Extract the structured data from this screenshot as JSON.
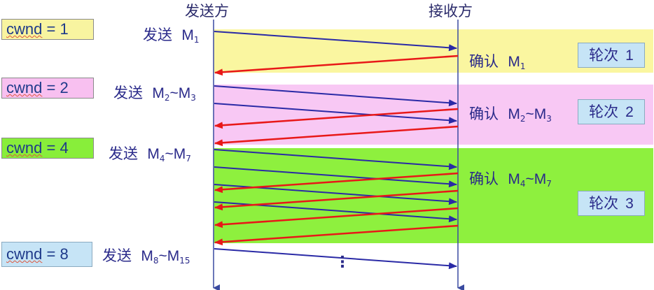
{
  "columns": {
    "sender": "发送方",
    "receiver": "接收方"
  },
  "colors": {
    "round1_band": "#faf6a0",
    "round2_band": "#f8c8f4",
    "round3_band": "#8ef03e",
    "send_arrow": "#2a2aa6",
    "ack_arrow": "#e81818",
    "cwnd1_bg": "#f8f4a0",
    "cwnd2_bg": "#f8c0f0",
    "cwnd4_bg": "#88ee3a",
    "cwnd8_bg": "#c6e4f6"
  },
  "cwnd_labels": [
    {
      "name": "cwnd",
      "value": "= 1"
    },
    {
      "name": "cwnd",
      "value": "= 2"
    },
    {
      "name": "cwnd",
      "value": "= 4"
    },
    {
      "name": "cwnd",
      "value": "= 8"
    }
  ],
  "send_labels": [
    {
      "prefix": "发送",
      "m1": "M",
      "s1": "1",
      "tilde": "",
      "m2": "",
      "s2": ""
    },
    {
      "prefix": "发送",
      "m1": "M",
      "s1": "2",
      "tilde": "~",
      "m2": "M",
      "s2": "3"
    },
    {
      "prefix": "发送",
      "m1": "M",
      "s1": "4",
      "tilde": "~",
      "m2": "M",
      "s2": "7"
    },
    {
      "prefix": "发送",
      "m1": "M",
      "s1": "8",
      "tilde": "~",
      "m2": "M",
      "s2": "15"
    }
  ],
  "ack_labels": [
    {
      "prefix": "确认",
      "m1": "M",
      "s1": "1",
      "tilde": "",
      "m2": "",
      "s2": ""
    },
    {
      "prefix": "确认",
      "m1": "M",
      "s1": "2",
      "tilde": "~",
      "m2": "M",
      "s2": "3"
    },
    {
      "prefix": "确认",
      "m1": "M",
      "s1": "4",
      "tilde": "~",
      "m2": "M",
      "s2": "7"
    }
  ],
  "rounds": [
    {
      "label": "轮次",
      "num": "1"
    },
    {
      "label": "轮次",
      "num": "2"
    },
    {
      "label": "轮次",
      "num": "3"
    }
  ],
  "continuation": "⋮"
}
